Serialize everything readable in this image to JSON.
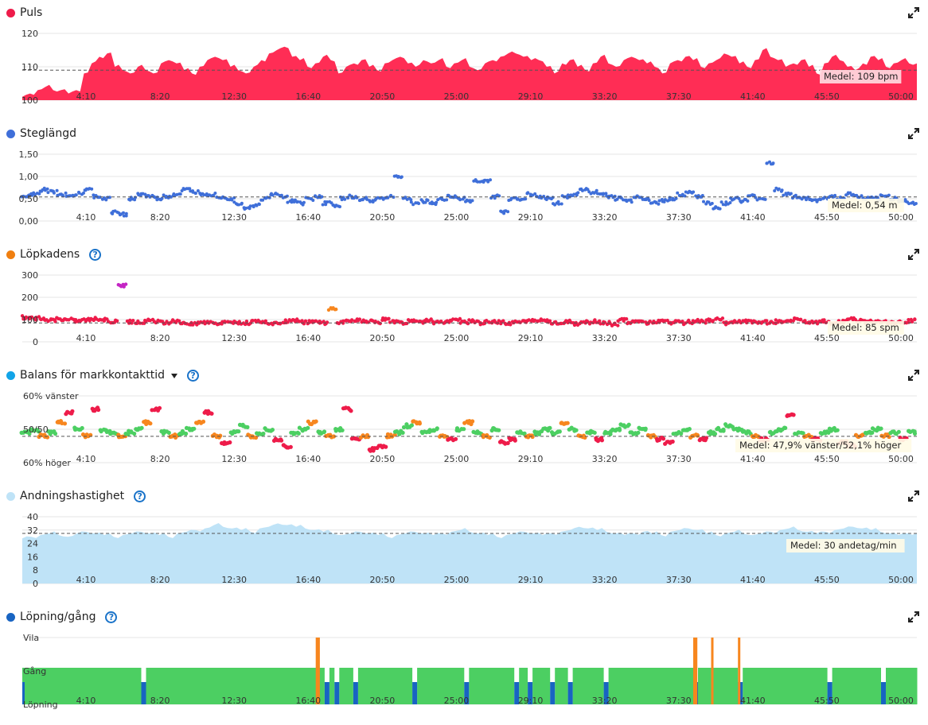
{
  "colors": {
    "pulse": "#ff2d55",
    "stride": "#3f6fd9",
    "cadence": "#ee1c4a",
    "gct": "#12a4e8",
    "resp": "#bfe3f7",
    "run_walk": "#1864c2",
    "green": "#4ccf62",
    "orange": "#f7861e",
    "purple": "#c425c4",
    "gray": "#d9d9d9"
  },
  "icons": {
    "expand": "expand-icon",
    "help": "help-icon",
    "dropdown": "chevron-down-icon"
  },
  "x_axis": {
    "domain_sec": [
      0,
      3060
    ],
    "tick_labels": [
      "4:10",
      "8:20",
      "12:30",
      "16:40",
      "20:50",
      "25:00",
      "29:10",
      "33:20",
      "37:30",
      "41:40",
      "45:50",
      "50:00"
    ]
  },
  "chart_data": [
    {
      "type": "area",
      "title": "Puls",
      "y_tick_labels": [
        "120",
        "110",
        "100"
      ],
      "ylim": [
        100,
        120
      ],
      "avg": {
        "value": 109,
        "label": "Medel: 109 bpm"
      },
      "samples": [
        101,
        102,
        103,
        104,
        103,
        103,
        102,
        103,
        108,
        111,
        113,
        114,
        110,
        109,
        108,
        110,
        109,
        108,
        111,
        112,
        111,
        109,
        108,
        110,
        112,
        113,
        112,
        110,
        109,
        108,
        110,
        112,
        114,
        115,
        116,
        113,
        112,
        110,
        111,
        113,
        112,
        108,
        110,
        111,
        112,
        110,
        109,
        111,
        112,
        113,
        111,
        110,
        112,
        111,
        112,
        110,
        111,
        112,
        110,
        109,
        111,
        112,
        113,
        114,
        114,
        113,
        112,
        112,
        110,
        108,
        111,
        112,
        110,
        109,
        111,
        113,
        111,
        110,
        112,
        113,
        112,
        111,
        110,
        108,
        111,
        112,
        113,
        112,
        110,
        111,
        112,
        114,
        113,
        111,
        110,
        112,
        115,
        113,
        112,
        110,
        111,
        112,
        110,
        108,
        111,
        113,
        112,
        110,
        109,
        111,
        113,
        112,
        110,
        111,
        112,
        111
      ]
    },
    {
      "type": "scatter",
      "title": "Steglängd",
      "y_tick_labels": [
        "1,50",
        "1,00",
        "0,50",
        "0,00"
      ],
      "ylim": [
        0,
        1.5
      ],
      "avg": {
        "value": 0.54,
        "label": "Medel: 0,54 m"
      },
      "samples": [
        0.55,
        0.6,
        0.7,
        0.65,
        0.6,
        0.58,
        0.62,
        0.7,
        0.55,
        0.5,
        0.2,
        0.15,
        0.5,
        0.6,
        0.55,
        0.5,
        0.55,
        0.6,
        0.7,
        0.65,
        0.62,
        0.6,
        0.55,
        0.5,
        0.4,
        0.3,
        0.35,
        0.5,
        0.6,
        0.55,
        0.45,
        0.4,
        0.5,
        0.55,
        0.4,
        0.35,
        0.5,
        0.55,
        0.5,
        0.45,
        0.5,
        0.55,
        1.0,
        0.5,
        0.4,
        0.45,
        0.4,
        0.5,
        0.55,
        0.5,
        0.45,
        0.9,
        0.9,
        0.55,
        0.2,
        0.5,
        0.5,
        0.6,
        0.55,
        0.5,
        0.4,
        0.55,
        0.6,
        0.7,
        0.65,
        0.6,
        0.55,
        0.5,
        0.45,
        0.55,
        0.5,
        0.4,
        0.45,
        0.5,
        0.6,
        0.65,
        0.55,
        0.4,
        0.3,
        0.4,
        0.5,
        0.45,
        0.55,
        0.5,
        1.3,
        0.7,
        0.6,
        0.55,
        0.5,
        0.45,
        0.5,
        0.55,
        0.5,
        0.6,
        0.55,
        0.5,
        0.5,
        0.55,
        0.5,
        0.45,
        0.4
      ]
    },
    {
      "type": "scatter",
      "title": "Löpkadens",
      "y_tick_labels": [
        "300",
        "200",
        "100",
        "0"
      ],
      "ylim": [
        0,
        300
      ],
      "avg": {
        "value": 85,
        "label": "Medel: 85 spm"
      },
      "samples": [
        110,
        105,
        100,
        98,
        102,
        100,
        96,
        100,
        103,
        98,
        92,
        255,
        90,
        88,
        95,
        90,
        85,
        92,
        88,
        80,
        88,
        90,
        85,
        92,
        88,
        85,
        90,
        86,
        80,
        88,
        92,
        95,
        88,
        90,
        85,
        150,
        88,
        92,
        95,
        90,
        88,
        100,
        90,
        85,
        92,
        88,
        95,
        85,
        90,
        100,
        88,
        92,
        85,
        90,
        88,
        85,
        90,
        92,
        95,
        100,
        88,
        85,
        90,
        82,
        88,
        92,
        85,
        80,
        100,
        88,
        95,
        85,
        90,
        92,
        88,
        85,
        90,
        92,
        95,
        100,
        85,
        90,
        92,
        88,
        90,
        85,
        92,
        95,
        100,
        90,
        88,
        92,
        85,
        90,
        100,
        95,
        90,
        92,
        88,
        85,
        92,
        95
      ]
    },
    {
      "type": "scatter",
      "title": "Balans för markkontakttid",
      "y_tick_labels": [
        "60% vänster",
        "50/50",
        "60% höger"
      ],
      "ylim": [
        40,
        60
      ],
      "avg": {
        "value": 47.9,
        "label": "Medel: 47,9% vänster/52,1% höger"
      },
      "samples": [
        49,
        49.5,
        48,
        49,
        52,
        55,
        50,
        48,
        56,
        49.5,
        49,
        48,
        49,
        50,
        52,
        56,
        49,
        48,
        49,
        50,
        52,
        55,
        48,
        46,
        49,
        51,
        48,
        49,
        50,
        47,
        45,
        49,
        50,
        52,
        49,
        48,
        50,
        56,
        47,
        48,
        44,
        45,
        48,
        49,
        51,
        52,
        49,
        50,
        48,
        47,
        50,
        52,
        49,
        48,
        50,
        46,
        47,
        49,
        48,
        49,
        50,
        49,
        52,
        50,
        48,
        49,
        47,
        49,
        50,
        51,
        49,
        50,
        48,
        47,
        46,
        49,
        50,
        48,
        47,
        49,
        50,
        51,
        50,
        49,
        48,
        47,
        49,
        50,
        54,
        49,
        48,
        47,
        49,
        50,
        46,
        45,
        48,
        49,
        50,
        48,
        49,
        47,
        49
      ]
    },
    {
      "type": "area",
      "title": "Andningshastighet",
      "y_tick_labels": [
        "40",
        "32",
        "24",
        "16",
        "8",
        "0"
      ],
      "ylim": [
        0,
        40
      ],
      "avg": {
        "value": 30,
        "label": "Medel: 30 andetag/min"
      },
      "samples": [
        27,
        28,
        29,
        30,
        29,
        28,
        30,
        31,
        30,
        29,
        28,
        29,
        30,
        31,
        30,
        29,
        28,
        30,
        31,
        32,
        33,
        35,
        34,
        33,
        32,
        31,
        33,
        34,
        36,
        35,
        34,
        33,
        32,
        31,
        30,
        29,
        30,
        31,
        30,
        29,
        28,
        29,
        30,
        31,
        30,
        29,
        30,
        31,
        32,
        31,
        30,
        29,
        28,
        29,
        30,
        31,
        30,
        29,
        30,
        31,
        32,
        34,
        33,
        32,
        31,
        30,
        29,
        30,
        31,
        30,
        29,
        31,
        32,
        33,
        32,
        30,
        29,
        30,
        31,
        30,
        29,
        30,
        31,
        32,
        33,
        32,
        31,
        30,
        31,
        32,
        33,
        34,
        33,
        32,
        31,
        30,
        29,
        30
      ]
    },
    {
      "type": "bar",
      "title": "Löpning/gång",
      "y_tick_labels": [
        "Vila",
        "Gång",
        "Löpning"
      ],
      "timeline": [
        "w",
        "w",
        "w",
        "w",
        "w",
        "w",
        "w",
        "w",
        "w",
        "w",
        "w",
        "w",
        "w",
        "w",
        "w",
        "w",
        "w",
        "w",
        "w",
        "w",
        "w",
        "w",
        "w",
        "w",
        "r",
        "r",
        "w",
        "w",
        "w",
        "w",
        "w",
        "w",
        "w",
        "w",
        "w",
        "w",
        "w",
        "w",
        "w",
        "w",
        "w",
        "w",
        "w",
        "w",
        "w",
        "w",
        "w",
        "w",
        "w",
        "w",
        "w",
        "w",
        "w",
        "w",
        "w",
        "w",
        "w",
        "w",
        "w",
        "w",
        "w",
        "w",
        "w",
        "w",
        "w",
        "w",
        "w",
        "w",
        "w",
        "w",
        "w",
        "w",
        "w",
        "w",
        "w",
        "w",
        "w",
        "w",
        "w",
        "w",
        "w",
        "w",
        "w",
        "w",
        "w",
        "w",
        "w",
        "w",
        "w",
        "w",
        "w",
        "w",
        "w",
        "w",
        "w",
        "w",
        "w",
        "w",
        "w",
        "w"
      ]
    }
  ]
}
